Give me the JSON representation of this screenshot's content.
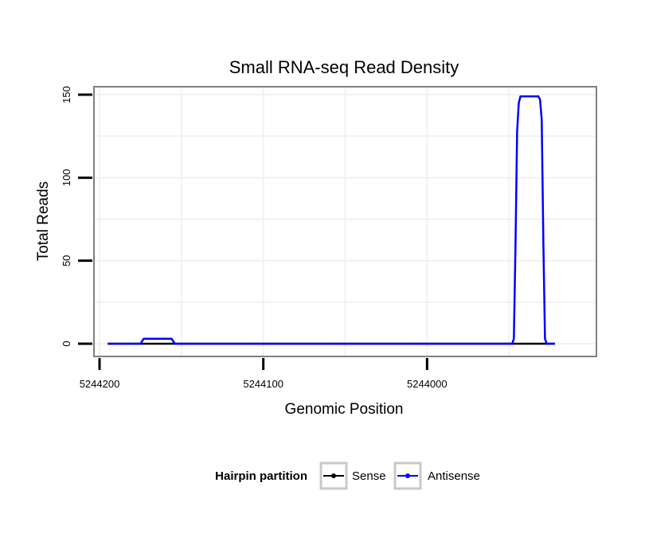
{
  "chart_data": {
    "type": "line",
    "title": "Small RNA-seq Read Density",
    "xlabel": "Genomic Position",
    "ylabel": "Total Reads",
    "x_reversed": true,
    "xlim": [
      5244200,
      5243900
    ],
    "ylim": [
      0,
      150
    ],
    "x_ticks": [
      5244200,
      5244100,
      5244000
    ],
    "x_tick_labels": [
      "5244200",
      "5244100",
      "5244000"
    ],
    "y_ticks": [
      0,
      50,
      100,
      150
    ],
    "y_tick_labels": [
      "0",
      "50",
      "100",
      "150"
    ],
    "grid": true,
    "legend": {
      "title": "Hairpin partition",
      "position": "bottom",
      "entries": [
        "Sense",
        "Antisense"
      ]
    },
    "series": [
      {
        "name": "Sense",
        "color": "#000000",
        "x": [
          5244195,
          5243922
        ],
        "y": [
          0,
          0
        ]
      },
      {
        "name": "Antisense",
        "color": "#0000ff",
        "x": [
          5244195,
          5244175,
          5244173,
          5244156,
          5244154,
          5243948,
          5243947,
          5243946,
          5243945,
          5243944,
          5243943,
          5243932,
          5243931,
          5243930,
          5243929,
          5243928,
          5243927,
          5243922
        ],
        "y": [
          0,
          0,
          3,
          3,
          0,
          0,
          3,
          60,
          128,
          145,
          149,
          149,
          147,
          135,
          60,
          3,
          0,
          0
        ]
      }
    ]
  }
}
